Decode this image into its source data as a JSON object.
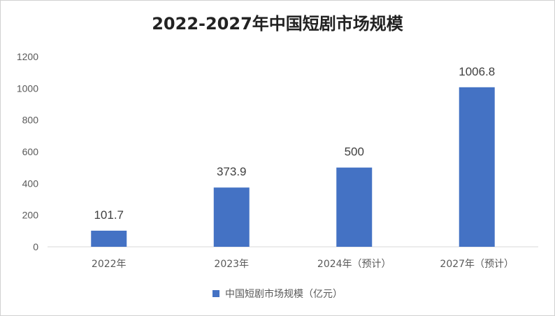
{
  "colors": {
    "bar": "#4472c4",
    "axis": "#d9d9d9"
  },
  "chart_data": {
    "type": "bar",
    "title": "2022-2027年中国短剧市场规模",
    "categories": [
      "2022年",
      "2023年",
      "2024年（预计）",
      "2027年（预计）"
    ],
    "series": [
      {
        "name": "中国短剧市场规模（亿元）",
        "values": [
          101.7,
          373.9,
          500,
          1006.8
        ]
      }
    ],
    "data_labels": [
      "101.7",
      "373.9",
      "500",
      "1006.8"
    ],
    "yticks": [
      "0",
      "200",
      "400",
      "600",
      "800",
      "1000",
      "1200"
    ],
    "ylim": [
      0,
      1200
    ],
    "grid": false,
    "legend": "bottom"
  }
}
